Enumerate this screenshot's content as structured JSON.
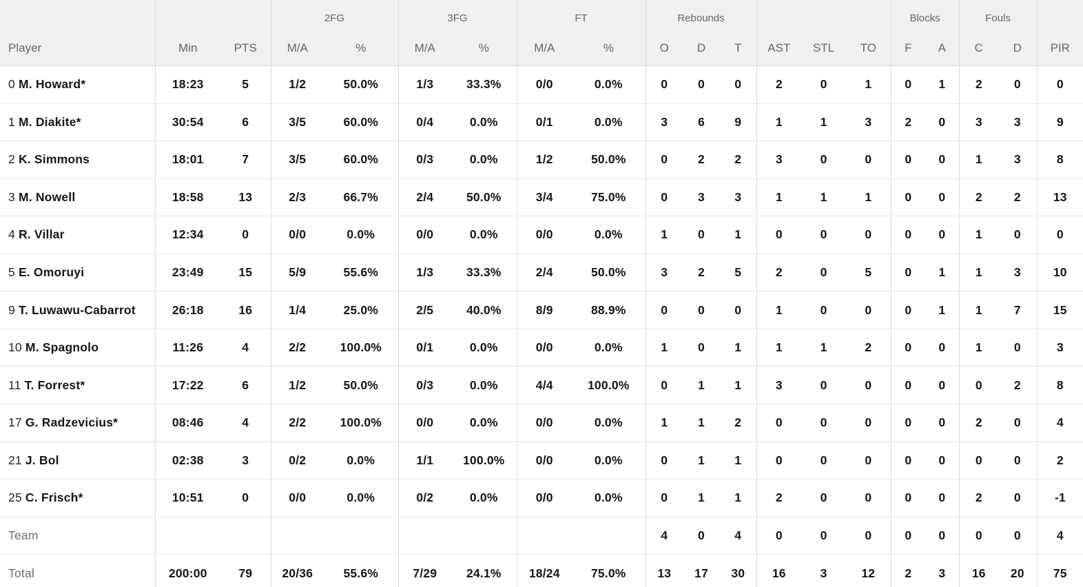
{
  "table": {
    "groups": [
      {
        "label": "",
        "span": 1
      },
      {
        "label": "",
        "span": 2
      },
      {
        "label": "2FG",
        "span": 2
      },
      {
        "label": "3FG",
        "span": 2
      },
      {
        "label": "FT",
        "span": 2
      },
      {
        "label": "Rebounds",
        "span": 3
      },
      {
        "label": "",
        "span": 3
      },
      {
        "label": "Blocks",
        "span": 2
      },
      {
        "label": "Fouls",
        "span": 2
      },
      {
        "label": "",
        "span": 1
      }
    ],
    "columns": [
      "Player",
      "Min",
      "PTS",
      "M/A",
      "%",
      "M/A",
      "%",
      "M/A",
      "%",
      "O",
      "D",
      "T",
      "AST",
      "STL",
      "TO",
      "F",
      "A",
      "C",
      "D",
      "PIR"
    ],
    "rows": [
      {
        "type": "player",
        "num": "0",
        "name": "M. Howard*",
        "cells": [
          "18:23",
          "5",
          "1/2",
          "50.0%",
          "1/3",
          "33.3%",
          "0/0",
          "0.0%",
          "0",
          "0",
          "0",
          "2",
          "0",
          "1",
          "0",
          "1",
          "2",
          "0",
          "0"
        ]
      },
      {
        "type": "player",
        "num": "1",
        "name": "M. Diakite*",
        "cells": [
          "30:54",
          "6",
          "3/5",
          "60.0%",
          "0/4",
          "0.0%",
          "0/1",
          "0.0%",
          "3",
          "6",
          "9",
          "1",
          "1",
          "3",
          "2",
          "0",
          "3",
          "3",
          "9"
        ]
      },
      {
        "type": "player",
        "num": "2",
        "name": "K. Simmons",
        "cells": [
          "18:01",
          "7",
          "3/5",
          "60.0%",
          "0/3",
          "0.0%",
          "1/2",
          "50.0%",
          "0",
          "2",
          "2",
          "3",
          "0",
          "0",
          "0",
          "0",
          "1",
          "3",
          "8"
        ]
      },
      {
        "type": "player",
        "num": "3",
        "name": "M. Nowell",
        "cells": [
          "18:58",
          "13",
          "2/3",
          "66.7%",
          "2/4",
          "50.0%",
          "3/4",
          "75.0%",
          "0",
          "3",
          "3",
          "1",
          "1",
          "1",
          "0",
          "0",
          "2",
          "2",
          "13"
        ]
      },
      {
        "type": "player",
        "num": "4",
        "name": "R. Villar",
        "cells": [
          "12:34",
          "0",
          "0/0",
          "0.0%",
          "0/0",
          "0.0%",
          "0/0",
          "0.0%",
          "1",
          "0",
          "1",
          "0",
          "0",
          "0",
          "0",
          "0",
          "1",
          "0",
          "0"
        ]
      },
      {
        "type": "player",
        "num": "5",
        "name": "E. Omoruyi",
        "cells": [
          "23:49",
          "15",
          "5/9",
          "55.6%",
          "1/3",
          "33.3%",
          "2/4",
          "50.0%",
          "3",
          "2",
          "5",
          "2",
          "0",
          "5",
          "0",
          "1",
          "1",
          "3",
          "10"
        ]
      },
      {
        "type": "player",
        "num": "9",
        "name": "T. Luwawu-Cabarrot",
        "cells": [
          "26:18",
          "16",
          "1/4",
          "25.0%",
          "2/5",
          "40.0%",
          "8/9",
          "88.9%",
          "0",
          "0",
          "0",
          "1",
          "0",
          "0",
          "0",
          "1",
          "1",
          "7",
          "15"
        ]
      },
      {
        "type": "player",
        "num": "10",
        "name": "M. Spagnolo",
        "cells": [
          "11:26",
          "4",
          "2/2",
          "100.0%",
          "0/1",
          "0.0%",
          "0/0",
          "0.0%",
          "1",
          "0",
          "1",
          "1",
          "1",
          "2",
          "0",
          "0",
          "1",
          "0",
          "3"
        ]
      },
      {
        "type": "player",
        "num": "11",
        "name": "T. Forrest*",
        "cells": [
          "17:22",
          "6",
          "1/2",
          "50.0%",
          "0/3",
          "0.0%",
          "4/4",
          "100.0%",
          "0",
          "1",
          "1",
          "3",
          "0",
          "0",
          "0",
          "0",
          "0",
          "2",
          "8"
        ]
      },
      {
        "type": "player",
        "num": "17",
        "name": "G. Radzevicius*",
        "cells": [
          "08:46",
          "4",
          "2/2",
          "100.0%",
          "0/0",
          "0.0%",
          "0/0",
          "0.0%",
          "1",
          "1",
          "2",
          "0",
          "0",
          "0",
          "0",
          "0",
          "2",
          "0",
          "4"
        ]
      },
      {
        "type": "player",
        "num": "21",
        "name": "J. Bol",
        "cells": [
          "02:38",
          "3",
          "0/2",
          "0.0%",
          "1/1",
          "100.0%",
          "0/0",
          "0.0%",
          "0",
          "1",
          "1",
          "0",
          "0",
          "0",
          "0",
          "0",
          "0",
          "0",
          "2"
        ]
      },
      {
        "type": "player",
        "num": "25",
        "name": "C. Frisch*",
        "cells": [
          "10:51",
          "0",
          "0/0",
          "0.0%",
          "0/2",
          "0.0%",
          "0/0",
          "0.0%",
          "0",
          "1",
          "1",
          "2",
          "0",
          "0",
          "0",
          "0",
          "2",
          "0",
          "-1"
        ]
      },
      {
        "type": "summary",
        "label": "Team",
        "cells": [
          "",
          "",
          "",
          "",
          "",
          "",
          "",
          "",
          "4",
          "0",
          "4",
          "0",
          "0",
          "0",
          "0",
          "0",
          "0",
          "0",
          "4"
        ]
      },
      {
        "type": "summary",
        "label": "Total",
        "cells": [
          "200:00",
          "79",
          "20/36",
          "55.6%",
          "7/29",
          "24.1%",
          "18/24",
          "75.0%",
          "13",
          "17",
          "30",
          "16",
          "3",
          "12",
          "2",
          "3",
          "16",
          "20",
          "75"
        ]
      }
    ]
  }
}
